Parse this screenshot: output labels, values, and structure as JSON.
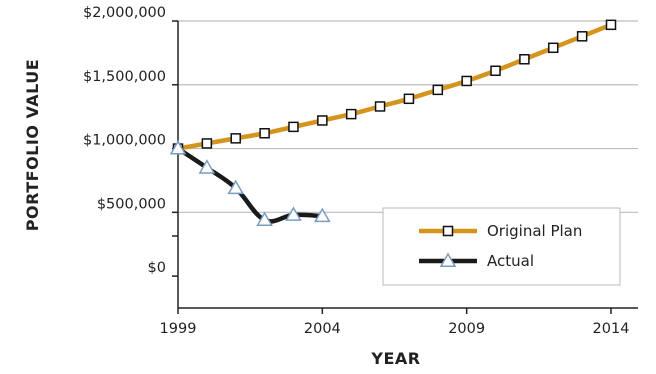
{
  "chart_data": {
    "type": "line",
    "xlabel": "YEAR",
    "ylabel": "PORTFOLIO VALUE",
    "x_ticks": [
      "1999",
      "2004",
      "2009",
      "2014"
    ],
    "y_ticks": [
      "$0",
      "$500,000",
      "$1,000,000",
      "$1,500,000",
      "$2,000,000"
    ],
    "xlim": [
      1999,
      2014
    ],
    "ylim": [
      -250000,
      2000000
    ],
    "grid": "horizontal",
    "legend_position": "lower-right",
    "series": [
      {
        "name": "Original Plan",
        "color": "#d4951f",
        "marker": "square",
        "x": [
          1999,
          2000,
          2001,
          2002,
          2003,
          2004,
          2005,
          2006,
          2007,
          2008,
          2009,
          2010,
          2011,
          2012,
          2013,
          2014
        ],
        "values": [
          1000000,
          1040000,
          1080000,
          1120000,
          1170000,
          1220000,
          1270000,
          1330000,
          1390000,
          1460000,
          1530000,
          1610000,
          1700000,
          1790000,
          1880000,
          1970000
        ]
      },
      {
        "name": "Actual",
        "color": "#1a1a1a",
        "marker": "triangle",
        "x": [
          1999,
          2000,
          2001,
          2002,
          2003,
          2004
        ],
        "values": [
          1000000,
          850000,
          690000,
          440000,
          480000,
          470000
        ]
      }
    ]
  }
}
